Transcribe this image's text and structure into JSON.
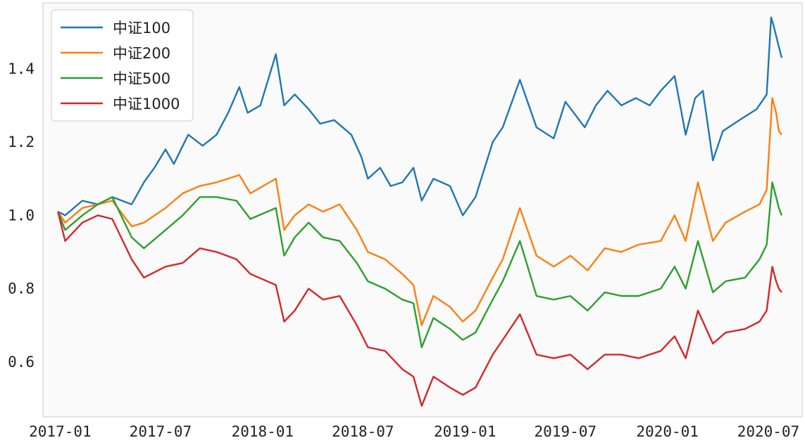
{
  "chart_data": {
    "type": "line",
    "title": "",
    "xlabel": "",
    "ylabel": "",
    "grid": false,
    "legend_position": "top-left",
    "background_color": "#fafafa",
    "x_range": [
      "2016-12-01",
      "2020-08-31"
    ],
    "ylim": [
      0.45,
      1.58
    ],
    "x_ticks": [
      {
        "date": "2017-01-01",
        "label": "2017-01"
      },
      {
        "date": "2017-07-01",
        "label": "2017-07"
      },
      {
        "date": "2018-01-01",
        "label": "2018-01"
      },
      {
        "date": "2018-07-01",
        "label": "2018-07"
      },
      {
        "date": "2019-01-01",
        "label": "2019-01"
      },
      {
        "date": "2019-07-01",
        "label": "2019-07"
      },
      {
        "date": "2020-01-01",
        "label": "2020-01"
      },
      {
        "date": "2020-07-01",
        "label": "2020-07"
      }
    ],
    "y_ticks": [
      {
        "value": 0.6,
        "label": "0.6"
      },
      {
        "value": 0.8,
        "label": "0.8"
      },
      {
        "value": 1.0,
        "label": "1.0"
      },
      {
        "value": 1.2,
        "label": "1.2"
      },
      {
        "value": 1.4,
        "label": "1.4"
      }
    ],
    "series": [
      {
        "name": "中证100",
        "color": "#1f77b4",
        "points": [
          [
            "2016-12-28",
            1.01
          ],
          [
            "2017-01-10",
            1.0
          ],
          [
            "2017-02-10",
            1.04
          ],
          [
            "2017-03-10",
            1.03
          ],
          [
            "2017-04-05",
            1.05
          ],
          [
            "2017-05-10",
            1.03
          ],
          [
            "2017-06-01",
            1.09
          ],
          [
            "2017-06-20",
            1.13
          ],
          [
            "2017-07-10",
            1.18
          ],
          [
            "2017-07-25",
            1.14
          ],
          [
            "2017-08-20",
            1.22
          ],
          [
            "2017-09-15",
            1.19
          ],
          [
            "2017-10-10",
            1.22
          ],
          [
            "2017-10-31",
            1.28
          ],
          [
            "2017-11-20",
            1.35
          ],
          [
            "2017-12-05",
            1.28
          ],
          [
            "2017-12-28",
            1.3
          ],
          [
            "2018-01-25",
            1.44
          ],
          [
            "2018-02-09",
            1.3
          ],
          [
            "2018-02-28",
            1.33
          ],
          [
            "2018-03-25",
            1.29
          ],
          [
            "2018-04-15",
            1.25
          ],
          [
            "2018-05-10",
            1.26
          ],
          [
            "2018-06-10",
            1.22
          ],
          [
            "2018-06-28",
            1.16
          ],
          [
            "2018-07-10",
            1.1
          ],
          [
            "2018-08-01",
            1.13
          ],
          [
            "2018-08-20",
            1.08
          ],
          [
            "2018-09-10",
            1.09
          ],
          [
            "2018-09-30",
            1.13
          ],
          [
            "2018-10-15",
            1.04
          ],
          [
            "2018-11-05",
            1.1
          ],
          [
            "2018-12-05",
            1.08
          ],
          [
            "2018-12-28",
            1.0
          ],
          [
            "2019-01-20",
            1.05
          ],
          [
            "2019-02-20",
            1.2
          ],
          [
            "2019-03-10",
            1.24
          ],
          [
            "2019-04-10",
            1.37
          ],
          [
            "2019-05-10",
            1.24
          ],
          [
            "2019-06-10",
            1.21
          ],
          [
            "2019-07-01",
            1.31
          ],
          [
            "2019-08-05",
            1.24
          ],
          [
            "2019-08-25",
            1.3
          ],
          [
            "2019-09-15",
            1.34
          ],
          [
            "2019-10-10",
            1.3
          ],
          [
            "2019-11-05",
            1.32
          ],
          [
            "2019-11-30",
            1.3
          ],
          [
            "2019-12-20",
            1.34
          ],
          [
            "2020-01-14",
            1.38
          ],
          [
            "2020-02-03",
            1.22
          ],
          [
            "2020-02-20",
            1.32
          ],
          [
            "2020-03-05",
            1.34
          ],
          [
            "2020-03-23",
            1.15
          ],
          [
            "2020-04-10",
            1.23
          ],
          [
            "2020-05-10",
            1.26
          ],
          [
            "2020-06-10",
            1.29
          ],
          [
            "2020-06-28",
            1.33
          ],
          [
            "2020-07-06",
            1.54
          ],
          [
            "2020-07-10",
            1.52
          ],
          [
            "2020-07-20",
            1.46
          ],
          [
            "2020-07-25",
            1.43
          ]
        ]
      },
      {
        "name": "中证200",
        "color": "#ff7f0e",
        "points": [
          [
            "2016-12-28",
            1.01
          ],
          [
            "2017-01-10",
            0.98
          ],
          [
            "2017-02-10",
            1.02
          ],
          [
            "2017-03-10",
            1.03
          ],
          [
            "2017-04-05",
            1.04
          ],
          [
            "2017-05-10",
            0.97
          ],
          [
            "2017-06-01",
            0.98
          ],
          [
            "2017-07-10",
            1.02
          ],
          [
            "2017-08-10",
            1.06
          ],
          [
            "2017-09-10",
            1.08
          ],
          [
            "2017-10-10",
            1.09
          ],
          [
            "2017-11-20",
            1.11
          ],
          [
            "2017-12-10",
            1.06
          ],
          [
            "2018-01-25",
            1.1
          ],
          [
            "2018-02-09",
            0.96
          ],
          [
            "2018-02-28",
            1.0
          ],
          [
            "2018-03-25",
            1.03
          ],
          [
            "2018-04-20",
            1.01
          ],
          [
            "2018-05-20",
            1.03
          ],
          [
            "2018-06-20",
            0.96
          ],
          [
            "2018-07-10",
            0.9
          ],
          [
            "2018-08-10",
            0.88
          ],
          [
            "2018-09-10",
            0.84
          ],
          [
            "2018-09-30",
            0.81
          ],
          [
            "2018-10-15",
            0.7
          ],
          [
            "2018-11-05",
            0.78
          ],
          [
            "2018-12-05",
            0.75
          ],
          [
            "2018-12-28",
            0.71
          ],
          [
            "2019-01-20",
            0.74
          ],
          [
            "2019-02-20",
            0.83
          ],
          [
            "2019-03-10",
            0.88
          ],
          [
            "2019-04-10",
            1.02
          ],
          [
            "2019-05-10",
            0.89
          ],
          [
            "2019-06-10",
            0.86
          ],
          [
            "2019-07-10",
            0.89
          ],
          [
            "2019-08-10",
            0.85
          ],
          [
            "2019-09-10",
            0.91
          ],
          [
            "2019-10-10",
            0.9
          ],
          [
            "2019-11-10",
            0.92
          ],
          [
            "2019-12-20",
            0.93
          ],
          [
            "2020-01-14",
            1.0
          ],
          [
            "2020-02-03",
            0.93
          ],
          [
            "2020-02-25",
            1.09
          ],
          [
            "2020-03-23",
            0.93
          ],
          [
            "2020-04-15",
            0.98
          ],
          [
            "2020-05-20",
            1.01
          ],
          [
            "2020-06-15",
            1.03
          ],
          [
            "2020-06-28",
            1.07
          ],
          [
            "2020-07-08",
            1.32
          ],
          [
            "2020-07-15",
            1.28
          ],
          [
            "2020-07-20",
            1.23
          ],
          [
            "2020-07-25",
            1.22
          ]
        ]
      },
      {
        "name": "中证500",
        "color": "#2ca02c",
        "points": [
          [
            "2016-12-28",
            1.01
          ],
          [
            "2017-01-10",
            0.96
          ],
          [
            "2017-02-10",
            1.0
          ],
          [
            "2017-03-10",
            1.03
          ],
          [
            "2017-04-05",
            1.05
          ],
          [
            "2017-05-10",
            0.94
          ],
          [
            "2017-06-01",
            0.91
          ],
          [
            "2017-07-10",
            0.96
          ],
          [
            "2017-08-10",
            1.0
          ],
          [
            "2017-09-10",
            1.05
          ],
          [
            "2017-10-10",
            1.05
          ],
          [
            "2017-11-15",
            1.04
          ],
          [
            "2017-12-10",
            0.99
          ],
          [
            "2018-01-25",
            1.02
          ],
          [
            "2018-02-09",
            0.89
          ],
          [
            "2018-02-28",
            0.94
          ],
          [
            "2018-03-25",
            0.98
          ],
          [
            "2018-04-20",
            0.94
          ],
          [
            "2018-05-20",
            0.93
          ],
          [
            "2018-06-20",
            0.87
          ],
          [
            "2018-07-10",
            0.82
          ],
          [
            "2018-08-10",
            0.8
          ],
          [
            "2018-09-10",
            0.77
          ],
          [
            "2018-09-30",
            0.76
          ],
          [
            "2018-10-15",
            0.64
          ],
          [
            "2018-11-05",
            0.72
          ],
          [
            "2018-12-05",
            0.69
          ],
          [
            "2018-12-28",
            0.66
          ],
          [
            "2019-01-20",
            0.68
          ],
          [
            "2019-02-20",
            0.77
          ],
          [
            "2019-03-10",
            0.82
          ],
          [
            "2019-04-10",
            0.93
          ],
          [
            "2019-05-10",
            0.78
          ],
          [
            "2019-06-10",
            0.77
          ],
          [
            "2019-07-10",
            0.78
          ],
          [
            "2019-08-10",
            0.74
          ],
          [
            "2019-09-10",
            0.79
          ],
          [
            "2019-10-10",
            0.78
          ],
          [
            "2019-11-10",
            0.78
          ],
          [
            "2019-12-20",
            0.8
          ],
          [
            "2020-01-14",
            0.86
          ],
          [
            "2020-02-03",
            0.8
          ],
          [
            "2020-02-25",
            0.93
          ],
          [
            "2020-03-23",
            0.79
          ],
          [
            "2020-04-15",
            0.82
          ],
          [
            "2020-05-20",
            0.83
          ],
          [
            "2020-06-15",
            0.88
          ],
          [
            "2020-06-28",
            0.92
          ],
          [
            "2020-07-08",
            1.09
          ],
          [
            "2020-07-15",
            1.05
          ],
          [
            "2020-07-20",
            1.02
          ],
          [
            "2020-07-25",
            1.0
          ]
        ]
      },
      {
        "name": "中证1000",
        "color": "#d62728",
        "points": [
          [
            "2016-12-28",
            1.01
          ],
          [
            "2017-01-10",
            0.93
          ],
          [
            "2017-02-10",
            0.98
          ],
          [
            "2017-03-10",
            1.0
          ],
          [
            "2017-04-05",
            0.99
          ],
          [
            "2017-05-10",
            0.88
          ],
          [
            "2017-06-01",
            0.83
          ],
          [
            "2017-07-10",
            0.86
          ],
          [
            "2017-08-10",
            0.87
          ],
          [
            "2017-09-10",
            0.91
          ],
          [
            "2017-10-10",
            0.9
          ],
          [
            "2017-11-15",
            0.88
          ],
          [
            "2017-12-10",
            0.84
          ],
          [
            "2018-01-25",
            0.81
          ],
          [
            "2018-02-09",
            0.71
          ],
          [
            "2018-02-28",
            0.74
          ],
          [
            "2018-03-25",
            0.8
          ],
          [
            "2018-04-20",
            0.77
          ],
          [
            "2018-05-20",
            0.78
          ],
          [
            "2018-06-20",
            0.7
          ],
          [
            "2018-07-10",
            0.64
          ],
          [
            "2018-08-10",
            0.63
          ],
          [
            "2018-09-10",
            0.58
          ],
          [
            "2018-09-30",
            0.56
          ],
          [
            "2018-10-15",
            0.48
          ],
          [
            "2018-11-05",
            0.56
          ],
          [
            "2018-12-05",
            0.53
          ],
          [
            "2018-12-28",
            0.51
          ],
          [
            "2019-01-20",
            0.53
          ],
          [
            "2019-02-20",
            0.62
          ],
          [
            "2019-03-10",
            0.66
          ],
          [
            "2019-04-10",
            0.73
          ],
          [
            "2019-05-10",
            0.62
          ],
          [
            "2019-06-10",
            0.61
          ],
          [
            "2019-07-10",
            0.62
          ],
          [
            "2019-08-10",
            0.58
          ],
          [
            "2019-09-10",
            0.62
          ],
          [
            "2019-10-10",
            0.62
          ],
          [
            "2019-11-10",
            0.61
          ],
          [
            "2019-12-20",
            0.63
          ],
          [
            "2020-01-14",
            0.67
          ],
          [
            "2020-02-03",
            0.61
          ],
          [
            "2020-02-25",
            0.74
          ],
          [
            "2020-03-23",
            0.65
          ],
          [
            "2020-04-15",
            0.68
          ],
          [
            "2020-05-20",
            0.69
          ],
          [
            "2020-06-15",
            0.71
          ],
          [
            "2020-06-28",
            0.74
          ],
          [
            "2020-07-08",
            0.86
          ],
          [
            "2020-07-15",
            0.82
          ],
          [
            "2020-07-20",
            0.8
          ],
          [
            "2020-07-25",
            0.79
          ]
        ]
      }
    ]
  }
}
